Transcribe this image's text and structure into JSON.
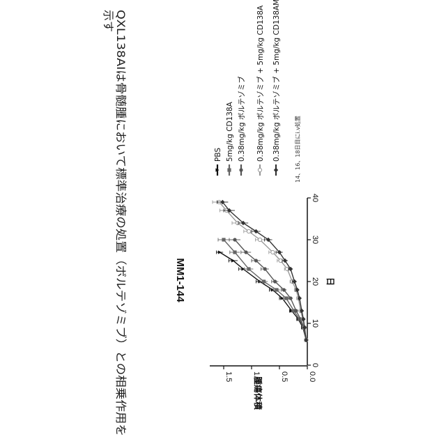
{
  "caption": {
    "line1": "QXL138AIは骨髄腫において標準治療の処置（ボルテゾミブ）との相乗作用を",
    "line2": "示す"
  },
  "chart_data": {
    "type": "line",
    "title": "MM1-144",
    "xlabel": "日",
    "ylabel": "腫瘍体積",
    "xlim": [
      0,
      40
    ],
    "ylim": [
      0,
      1.75
    ],
    "x_ticks": [
      "0",
      "10",
      "20",
      "30",
      "40"
    ],
    "y_ticks": [
      "0.0",
      "0.5",
      "1.0",
      "1.5"
    ],
    "legend_position": "top-right",
    "grid": false,
    "note": "14、16、18日目にi.v処置",
    "series": [
      {
        "name": "PBS",
        "color": "#111111",
        "marker": "triangle",
        "x": [
          6,
          9,
          11,
          13,
          16,
          18,
          20,
          23,
          25,
          27
        ],
        "y": [
          0.02,
          0.08,
          0.16,
          0.28,
          0.45,
          0.62,
          0.85,
          1.15,
          1.33,
          1.57
        ],
        "err": [
          0.01,
          0.02,
          0.03,
          0.04,
          0.05,
          0.06,
          0.07,
          0.08,
          0.08,
          0.06
        ]
      },
      {
        "name": "5mg/kg CD138A",
        "color": "#666666",
        "marker": "square",
        "x": [
          6,
          9,
          11,
          13,
          16,
          18,
          20,
          23,
          27,
          30
        ],
        "y": [
          0.02,
          0.07,
          0.14,
          0.24,
          0.38,
          0.55,
          0.78,
          1.05,
          1.3,
          1.5
        ],
        "err": [
          0.01,
          0.02,
          0.03,
          0.04,
          0.05,
          0.06,
          0.07,
          0.08,
          0.09,
          0.1
        ]
      },
      {
        "name": "0.38mg/kg ボルテゾミブ",
        "color": "#555555",
        "marker": "circle",
        "x": [
          6,
          9,
          11,
          13,
          16,
          18,
          20,
          23,
          25,
          27,
          30
        ],
        "y": [
          0.02,
          0.06,
          0.12,
          0.2,
          0.3,
          0.42,
          0.58,
          0.76,
          0.92,
          1.1,
          1.3
        ],
        "err": [
          0.01,
          0.02,
          0.03,
          0.03,
          0.04,
          0.05,
          0.06,
          0.07,
          0.08,
          0.09,
          0.1
        ]
      },
      {
        "name": "0.38mg/kg ボルテゾミブ + 5mg/kg CD138A",
        "color": "#999999",
        "marker": "open-circle",
        "x": [
          6,
          9,
          11,
          13,
          16,
          18,
          20,
          23,
          25,
          27,
          30,
          32,
          34,
          37,
          39
        ],
        "y": [
          0.02,
          0.05,
          0.08,
          0.12,
          0.16,
          0.2,
          0.27,
          0.36,
          0.48,
          0.62,
          0.85,
          1.05,
          1.25,
          1.45,
          1.58
        ],
        "err": [
          0.01,
          0.01,
          0.02,
          0.02,
          0.03,
          0.03,
          0.04,
          0.05,
          0.06,
          0.07,
          0.08,
          0.09,
          0.1,
          0.12,
          0.12
        ]
      },
      {
        "name": "0.38mg/kg ボルテゾミブ + 5mg/kg CD138AM",
        "color": "#333333",
        "marker": "diamond",
        "x": [
          6,
          9,
          11,
          13,
          16,
          18,
          20,
          23,
          25,
          27,
          30,
          32,
          34,
          37,
          39
        ],
        "y": [
          0.02,
          0.05,
          0.07,
          0.1,
          0.14,
          0.18,
          0.23,
          0.3,
          0.4,
          0.5,
          0.7,
          0.92,
          1.15,
          1.4,
          1.52
        ],
        "err": [
          0.01,
          0.01,
          0.02,
          0.02,
          0.02,
          0.03,
          0.04,
          0.04,
          0.05,
          0.06,
          0.07,
          0.08,
          0.09,
          0.1,
          0.1
        ]
      }
    ]
  }
}
